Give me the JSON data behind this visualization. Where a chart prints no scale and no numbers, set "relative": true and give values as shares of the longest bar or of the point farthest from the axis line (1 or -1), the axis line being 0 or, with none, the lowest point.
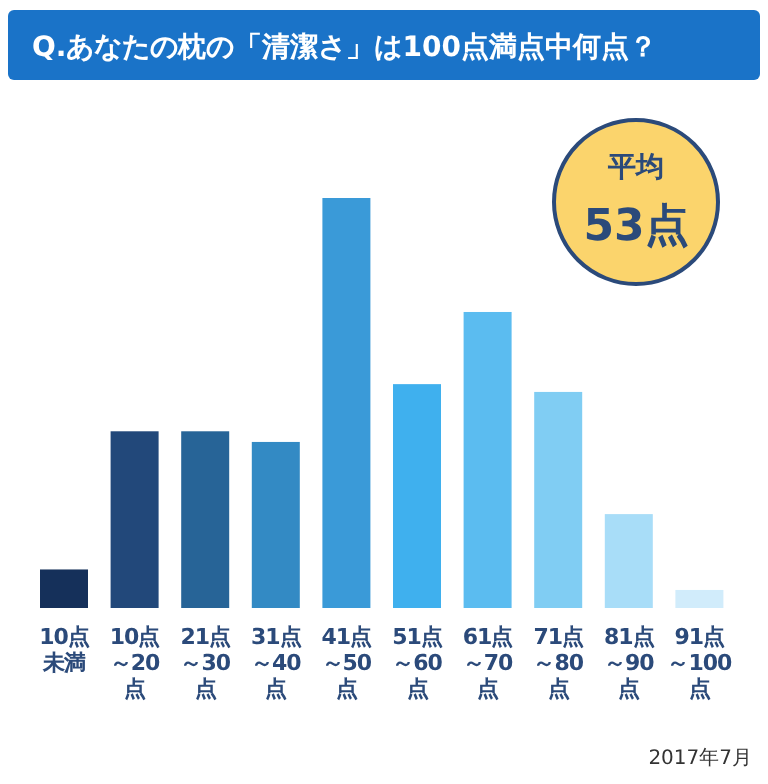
{
  "chart_data": {
    "type": "bar",
    "title": "Q.あなたの枕の「清潔さ」は100点満点中何点？",
    "relative": true,
    "categories": [
      "10点未満",
      "10点～20点",
      "21点～30点",
      "31点～40点",
      "41点～50点",
      "51点～60点",
      "61点～70点",
      "71点～80点",
      "81点～90点",
      "91点～100点"
    ],
    "values": [
      0.094,
      0.431,
      0.431,
      0.405,
      1,
      0.546,
      0.722,
      0.527,
      0.229,
      0.044
    ],
    "colors": [
      "#15305a",
      "#22487a",
      "#276497",
      "#338ac4",
      "#3a9ad8",
      "#3fb0ee",
      "#5bbcf0",
      "#80cdf3",
      "#a8ddf8",
      "#d1ecfb"
    ],
    "annotations": [
      "平均\n53点",
      "2017年7月"
    ]
  }
}
